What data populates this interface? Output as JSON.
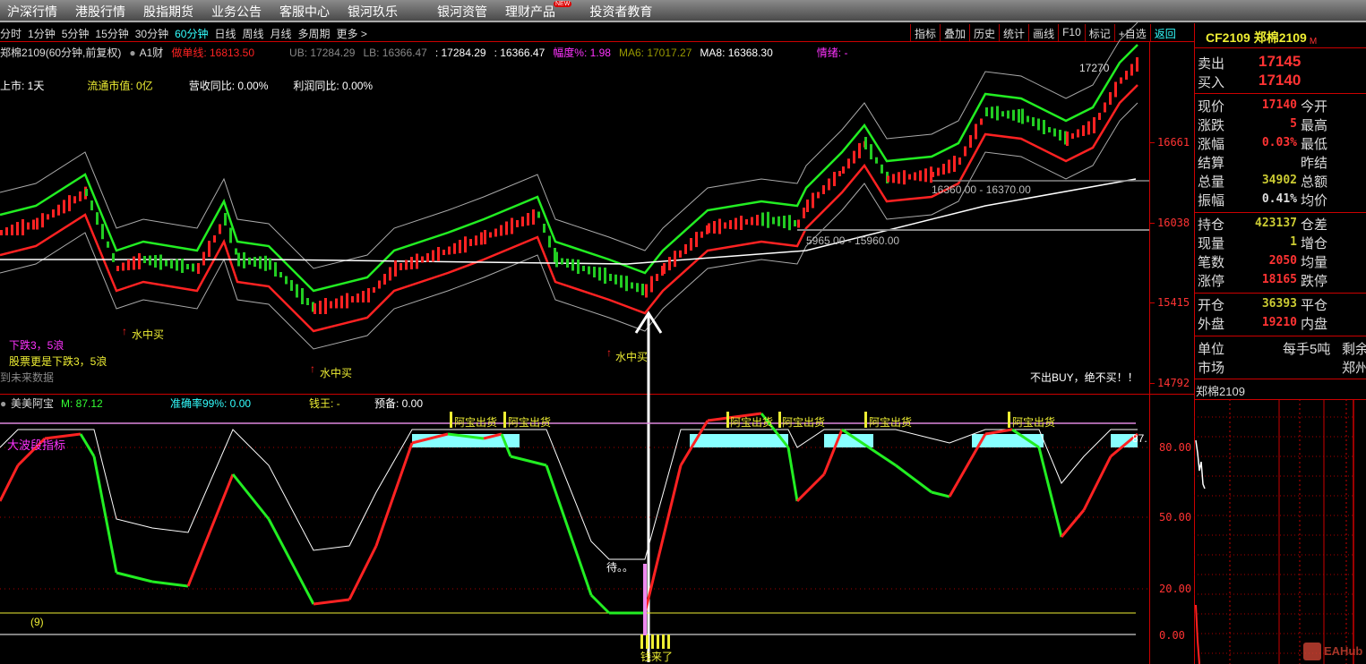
{
  "menu": {
    "items": [
      "沪深行情",
      "港股行情",
      "股指期货",
      "业务公告",
      "客服中心",
      "银河玖乐",
      "银河资管",
      "理财产品",
      "投资者教育"
    ],
    "new_badge": "NEW"
  },
  "periods": {
    "items": [
      "分时",
      "1分钟",
      "5分钟",
      "15分钟",
      "30分钟",
      "60分钟",
      "日线",
      "周线",
      "月线",
      "多周期",
      "更多 >"
    ],
    "active": "60分钟"
  },
  "toolbar": {
    "buttons": [
      "指标",
      "叠加",
      "历史",
      "统计",
      "画线",
      "F10",
      "标记",
      "+自选",
      "返回"
    ]
  },
  "chart_header": {
    "title": "郑棉2109(60分钟,前复权)",
    "badge": "A1财",
    "zuodan": "做单线: 16813.50",
    "ub": "UB: 17284.29",
    "lb": "LB: 16366.47",
    "v1": ": 17284.29",
    "v2": ": 16366.47",
    "fudu": "幅度%: 1.98",
    "ma6": "MA6: 17017.27",
    "ma8": "MA8: 16368.30",
    "qingxu": "情绪: -"
  },
  "info_row": {
    "shangshi": "上市: 1天",
    "liutong": "流通市值: 0亿",
    "yingshou": "营收同比: 0.00%",
    "lirun": "利润同比: 0.00%"
  },
  "annotations": {
    "buy1": "水中买",
    "buy2": "水中买",
    "buy3": "水中买",
    "down1": "下跌3，5浪",
    "down2": "股票更是下跌3，5浪",
    "future": "用到未来数据",
    "peak": "17270",
    "range1": "16360.00 - 16370.00",
    "range2": "5965.00 - 15960.00",
    "nobuy": "不出BUY，绝不买！！"
  },
  "price_axis": [
    "16661",
    "16038",
    "15415",
    "14792"
  ],
  "indicator": {
    "name": "美美阿宝",
    "m": "M: 87.12",
    "accuracy": "准确率99%: 0.00",
    "qianwang": "钱王: -",
    "yubei": "预备: 0.00",
    "wave_label": "大波段指标",
    "sell_label": "阿宝出货",
    "wait": "待。。",
    "money": "钱来了",
    "nine": "(9)",
    "last": "87."
  },
  "indicator_axis": [
    "80.00",
    "50.00",
    "20.00",
    "0.00"
  ],
  "quote": {
    "code": "CF2109 郑棉2109",
    "market_flag": "M",
    "sell": {
      "label": "卖出",
      "value": "17145"
    },
    "buy": {
      "label": "买入",
      "value": "17140"
    },
    "rows1": [
      {
        "l": "现价",
        "v": "17140",
        "r": "今开"
      },
      {
        "l": "涨跌",
        "v": "5",
        "r": "最高"
      },
      {
        "l": "涨幅",
        "v": "0.03%",
        "r": "最低"
      },
      {
        "l": "结算",
        "v": "",
        "r": "昨结"
      },
      {
        "l": "总量",
        "v": "34902",
        "r": "总额"
      },
      {
        "l": "振幅",
        "v": "0.41%",
        "r": "均价"
      }
    ],
    "rows2": [
      {
        "l": "持仓",
        "v": "423137",
        "r": "仓差"
      },
      {
        "l": "现量",
        "v": "1",
        "r": "增仓"
      },
      {
        "l": "笔数",
        "v": "2050",
        "r": "均量"
      },
      {
        "l": "涨停",
        "v": "18165",
        "r": "跌停"
      }
    ],
    "rows3": [
      {
        "l": "开仓",
        "v": "36393",
        "r": "平仓"
      },
      {
        "l": "外盘",
        "v": "19210",
        "r": "内盘"
      }
    ],
    "unit": {
      "label": "单位",
      "value": "每手5吨",
      "extra": "剩余"
    },
    "market": {
      "label": "市场",
      "value": "郑州"
    },
    "mini_title": "郑棉2109"
  },
  "watermark": "EAHub",
  "colors": {
    "up": "#ff2020",
    "down": "#00e000",
    "axis": "#cc0000",
    "cyan": "#66ffff",
    "yellow": "#ffff33",
    "magenta": "#ff33ff"
  }
}
